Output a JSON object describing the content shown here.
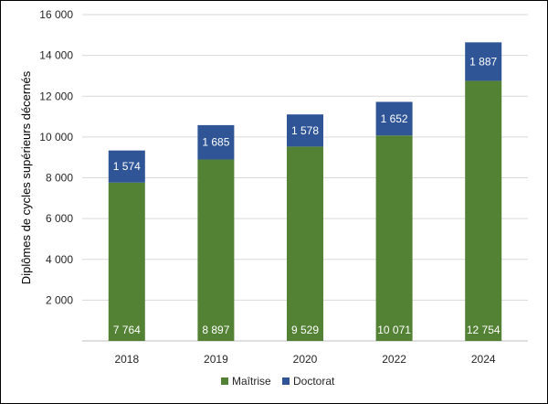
{
  "chart_data": {
    "type": "bar",
    "stacked": true,
    "categories": [
      "2018",
      "2019",
      "2020",
      "2022",
      "2024"
    ],
    "series": [
      {
        "name": "Maîtrise",
        "color": "#548235",
        "values": [
          7764,
          8897,
          9529,
          10071,
          12754
        ],
        "labels": [
          "7 764",
          "8 897",
          "9 529",
          "10 071",
          "12 754"
        ]
      },
      {
        "name": "Doctorat",
        "color": "#2F5597",
        "values": [
          1574,
          1685,
          1578,
          1652,
          1887
        ],
        "labels": [
          "1 574",
          "1 685",
          "1 578",
          "1 652",
          "1 887"
        ]
      }
    ],
    "ylabel": "Diplômes de cycles supérieurs décernés",
    "xlabel": "",
    "ylim": [
      0,
      16000
    ],
    "yticks": [
      0,
      2000,
      4000,
      6000,
      8000,
      10000,
      12000,
      14000,
      16000
    ],
    "ytick_labels": [
      "",
      "2 000",
      "4 000",
      "6 000",
      "8 000",
      "10 000",
      "12 000",
      "14 000",
      "16 000"
    ],
    "grid": true,
    "legend": "bottom"
  }
}
